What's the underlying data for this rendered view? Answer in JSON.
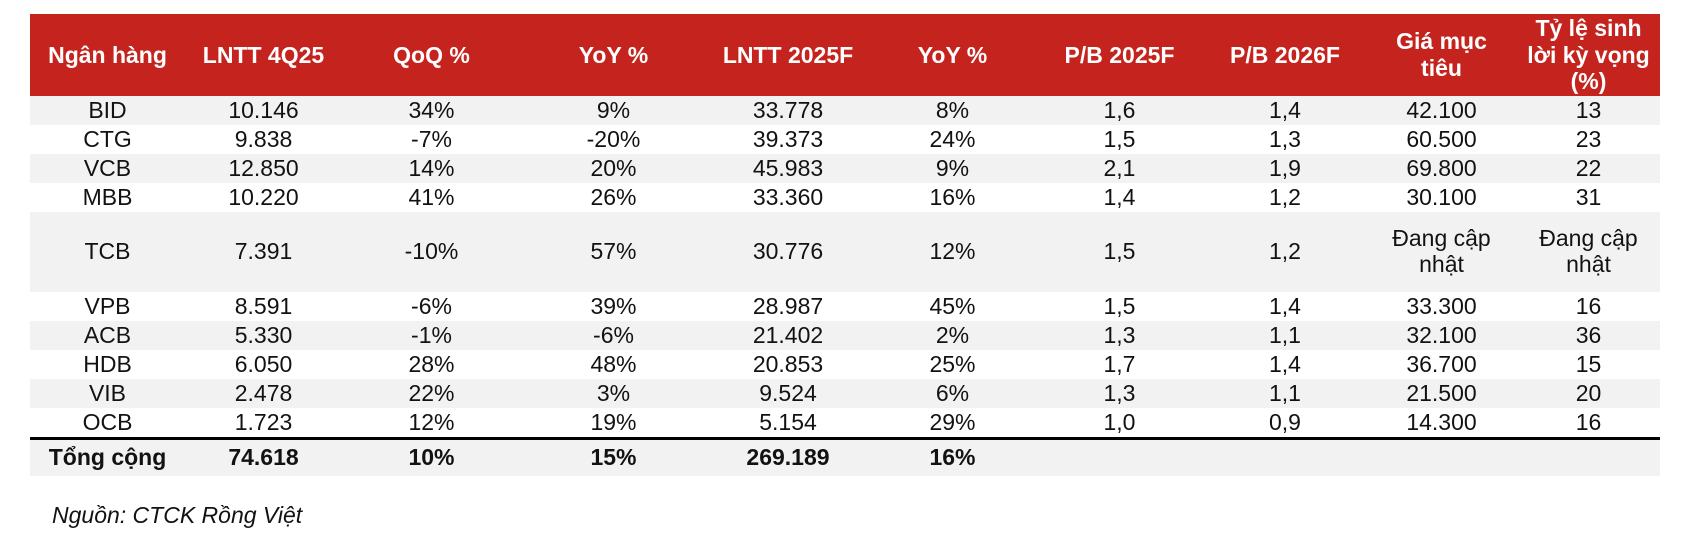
{
  "colors": {
    "header_bg": "#c5241e",
    "header_text": "#ffffff",
    "stripe_bg": "#f2f2f2",
    "row_bg": "#ffffff",
    "text": "#121212",
    "total_divider": "#000000"
  },
  "table": {
    "columns": [
      "Ngân hàng",
      "LNTT 4Q25",
      "QoQ %",
      "YoY %",
      "LNTT 2025F",
      "YoY %",
      "P/B 2025F",
      "P/B 2026F",
      "Giá mục tiêu",
      "Tỷ lệ sinh lời kỳ vọng (%)"
    ],
    "rows": [
      [
        "BID",
        "10.146",
        "34%",
        "9%",
        "33.778",
        "8%",
        "1,6",
        "1,4",
        "42.100",
        "13"
      ],
      [
        "CTG",
        "9.838",
        "-7%",
        "-20%",
        "39.373",
        "24%",
        "1,5",
        "1,3",
        "60.500",
        "23"
      ],
      [
        "VCB",
        "12.850",
        "14%",
        "20%",
        "45.983",
        "9%",
        "2,1",
        "1,9",
        "69.800",
        "22"
      ],
      [
        "MBB",
        "10.220",
        "41%",
        "26%",
        "33.360",
        "16%",
        "1,4",
        "1,2",
        "30.100",
        "31"
      ],
      [
        "TCB",
        "7.391",
        "-10%",
        "57%",
        "30.776",
        "12%",
        "1,5",
        "1,2",
        "Đang cập nhật",
        "Đang cập nhật"
      ],
      [
        "VPB",
        "8.591",
        "-6%",
        "39%",
        "28.987",
        "45%",
        "1,5",
        "1,4",
        "33.300",
        "16"
      ],
      [
        "ACB",
        "5.330",
        "-1%",
        "-6%",
        "21.402",
        "2%",
        "1,3",
        "1,1",
        "32.100",
        "36"
      ],
      [
        "HDB",
        "6.050",
        "28%",
        "48%",
        "20.853",
        "25%",
        "1,7",
        "1,4",
        "36.700",
        "15"
      ],
      [
        "VIB",
        "2.478",
        "22%",
        "3%",
        "9.524",
        "6%",
        "1,3",
        "1,1",
        "21.500",
        "20"
      ],
      [
        "OCB",
        "1.723",
        "12%",
        "19%",
        "5.154",
        "29%",
        "1,0",
        "0,9",
        "14.300",
        "16"
      ]
    ],
    "total_row": [
      "Tổng cộng",
      "74.618",
      "10%",
      "15%",
      "269.189",
      "16%",
      "",
      "",
      "",
      ""
    ],
    "updating_placeholder": "Đang cập nhật"
  },
  "source": "Nguồn: CTCK Rồng Việt"
}
